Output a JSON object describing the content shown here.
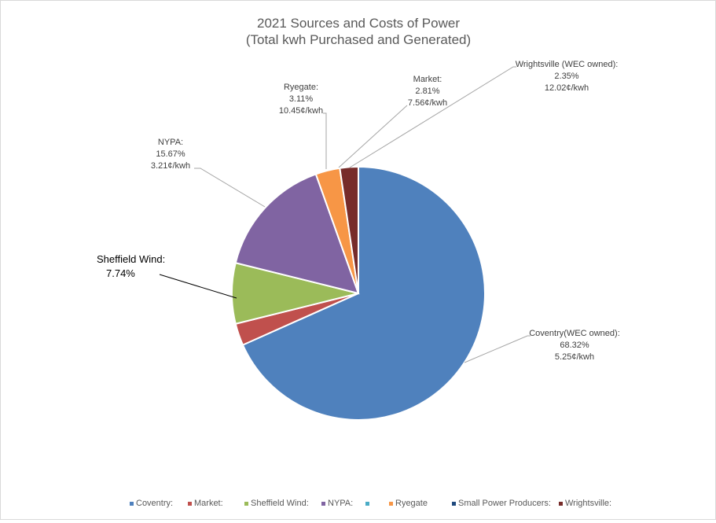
{
  "chart_data": {
    "type": "pie",
    "title": "2021 Sources and Costs of Power",
    "subtitle": "(Total kwh Purchased and Generated)",
    "slices": [
      {
        "name": "Coventry:",
        "value": 68.32,
        "color": "#4f81bd"
      },
      {
        "name": "Market:",
        "value": 2.81,
        "color": "#c0504d"
      },
      {
        "name": "Sheffield Wind:",
        "value": 7.74,
        "color": "#9bbb59"
      },
      {
        "name": "NYPA:",
        "value": 15.67,
        "color": "#8064a2"
      },
      {
        "name": "",
        "value": 0,
        "color": "#4bacc6"
      },
      {
        "name": "Ryegate",
        "value": 3.11,
        "color": "#f79646"
      },
      {
        "name": "Small Power Producers:",
        "value": 0,
        "color": "#1f497d"
      },
      {
        "name": "Wrightsville:",
        "value": 2.35,
        "color": "#772c2a"
      }
    ],
    "data_labels": {
      "coventry": [
        "Coventry(WEC owned):",
        "68.32%",
        "5.25¢/kwh"
      ],
      "wrightsville": [
        "Wrightsville (WEC owned):",
        "2.35%",
        "12.02¢/kwh"
      ],
      "market": [
        "Market:",
        "2.81%",
        "7.56¢/kwh"
      ],
      "ryegate": [
        "Ryegate:",
        "3.11%",
        "10.45¢/kwh"
      ],
      "nypa": [
        "NYPA:",
        "15.67%",
        "3.21¢/kwh"
      ],
      "sheffield": [
        "Sheffield Wind:",
        "7.74%"
      ]
    },
    "legend_position": "bottom"
  }
}
